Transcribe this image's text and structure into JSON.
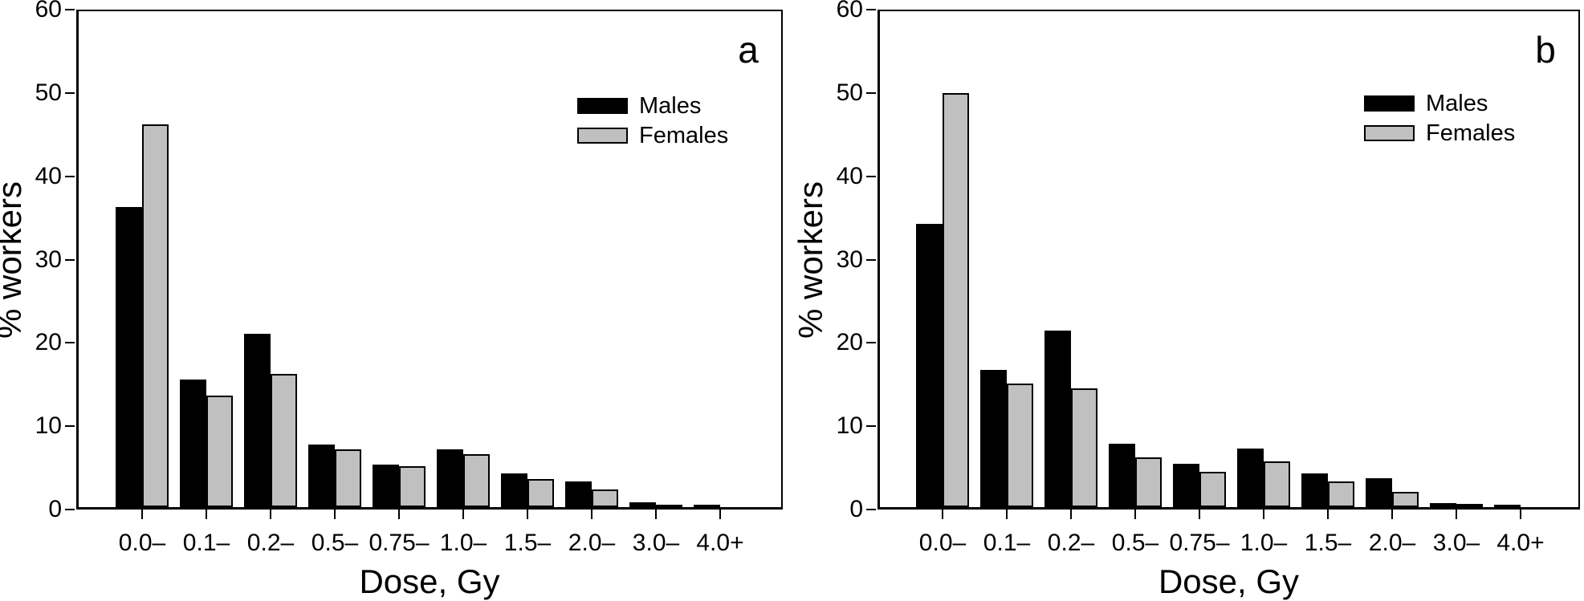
{
  "figure": {
    "background": "#ffffff",
    "axis_color": "#000000",
    "bar_colors": {
      "males": "#000000",
      "females": "#c0c0c0"
    }
  },
  "chart_data": [
    {
      "type": "bar",
      "panel_label": "a",
      "xlabel": "Dose, Gy",
      "ylabel": "% workers",
      "ylim": [
        0,
        60
      ],
      "yticks": [
        "0",
        "10",
        "20",
        "30",
        "40",
        "50",
        "60"
      ],
      "grid": false,
      "legend_position": "upper-right",
      "categories": [
        "0.0–",
        "0.1–",
        "0.2–",
        "0.5–",
        "0.75–",
        "1.0–",
        "1.5–",
        "2.0–",
        "3.0–",
        "4.0+"
      ],
      "series": [
        {
          "name": "Males",
          "color": "#000000",
          "values": [
            36.3,
            15.4,
            20.9,
            7.6,
            5.1,
            7.0,
            4.1,
            3.1,
            0.6,
            0.3
          ]
        },
        {
          "name": "Females",
          "color": "#c0c0c0",
          "values": [
            46.2,
            13.5,
            16.1,
            7.0,
            4.9,
            6.4,
            3.4,
            2.1,
            0.3,
            0
          ]
        }
      ]
    },
    {
      "type": "bar",
      "panel_label": "b",
      "xlabel": "Dose, Gy",
      "ylabel": "% workers",
      "ylim": [
        0,
        60
      ],
      "yticks": [
        "0",
        "10",
        "20",
        "30",
        "40",
        "50",
        "60"
      ],
      "grid": false,
      "legend_position": "upper-right",
      "categories": [
        "0.0–",
        "0.1–",
        "0.2–",
        "0.5–",
        "0.75–",
        "1.0–",
        "1.5–",
        "2.0–",
        "3.0–",
        "4.0+"
      ],
      "series": [
        {
          "name": "Males",
          "color": "#000000",
          "values": [
            34.2,
            16.6,
            21.3,
            7.7,
            5.2,
            7.1,
            4.1,
            3.5,
            0.5,
            0.3
          ]
        },
        {
          "name": "Females",
          "color": "#c0c0c0",
          "values": [
            50.0,
            14.9,
            14.3,
            6.0,
            4.3,
            5.5,
            3.1,
            1.8,
            0.35,
            0
          ]
        }
      ]
    }
  ]
}
